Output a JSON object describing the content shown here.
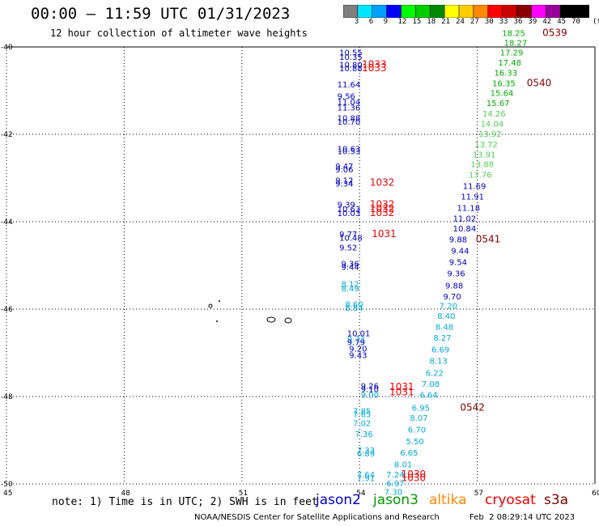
{
  "title": "00:00 – 11:59 UTC 01/31/2023",
  "subtitle": "12 hour collection of altimeter wave heights",
  "colorbar": {
    "unit": "(ft)",
    "labels": [
      "3",
      "6",
      "9",
      "12",
      "15",
      "18",
      "21",
      "24",
      "27",
      "30",
      "33",
      "36",
      "39",
      "42",
      "45",
      "70"
    ],
    "colors": [
      "#7f7f7f",
      "#00e5ff",
      "#00a0ff",
      "#0000ff",
      "#00ff00",
      "#00cc00",
      "#008800",
      "#ffff00",
      "#ffcc00",
      "#ff8800",
      "#ff0000",
      "#cc0000",
      "#880000",
      "#ff00ff",
      "#990099",
      "#000000",
      "#000000"
    ]
  },
  "note": "note: 1) Time is in UTC; 2) SWH is in feet",
  "satellites": [
    {
      "name": "jason2",
      "color": "#0000cc"
    },
    {
      "name": "jason3",
      "color": "#009900"
    },
    {
      "name": "altika",
      "color": "#ff8800"
    },
    {
      "name": "cryosat",
      "color": "#ee0000"
    },
    {
      "name": "s3a",
      "color": "#880000"
    }
  ],
  "credit": "NOAA/NESDIS Center for Satellite Applications and Research",
  "timestamp": "Feb  2 08:29:14 UTC 2023",
  "chart_data": {
    "type": "scatter",
    "title": "00:00 – 11:59 UTC 01/31/2023",
    "xlabel": "",
    "ylabel": "",
    "xlim": [
      45,
      60
    ],
    "ylim": [
      -50,
      -40
    ],
    "x_ticks": [
      "45",
      "48",
      "51",
      "54",
      "57",
      "60"
    ],
    "y_ticks": [
      "-40",
      "-42",
      "-44",
      "-46",
      "-48",
      "-50"
    ],
    "grid": true,
    "points": [
      {
        "lon": 53.75,
        "lat": -40.12,
        "text": "10.55",
        "color": "#0000cc"
      },
      {
        "lon": 53.75,
        "lat": -40.22,
        "text": "10.35",
        "color": "#0000cc"
      },
      {
        "lon": 53.75,
        "lat": -40.4,
        "text": "10.80",
        "color": "#0000cc"
      },
      {
        "lon": 53.75,
        "lat": -40.48,
        "text": "10.88",
        "color": "#0000cc"
      },
      {
        "lon": 54.35,
        "lat": -40.4,
        "text": "1033",
        "color": "#ee0000"
      },
      {
        "lon": 54.35,
        "lat": -40.48,
        "text": "1033",
        "color": "#ee0000"
      },
      {
        "lon": 53.7,
        "lat": -40.85,
        "text": "11.64",
        "color": "#0000cc"
      },
      {
        "lon": 53.7,
        "lat": -41.12,
        "text": "9.56",
        "color": "#0000cc"
      },
      {
        "lon": 53.7,
        "lat": -41.25,
        "text": "11.04",
        "color": "#0000cc"
      },
      {
        "lon": 53.7,
        "lat": -41.38,
        "text": "11.36",
        "color": "#0000cc"
      },
      {
        "lon": 53.7,
        "lat": -41.62,
        "text": "10.88",
        "color": "#0000cc"
      },
      {
        "lon": 53.7,
        "lat": -41.7,
        "text": "10.70",
        "color": "#0000cc"
      },
      {
        "lon": 53.7,
        "lat": -42.32,
        "text": "10.63",
        "color": "#0000cc"
      },
      {
        "lon": 53.7,
        "lat": -42.38,
        "text": "10.53",
        "color": "#0000cc"
      },
      {
        "lon": 53.65,
        "lat": -42.72,
        "text": "9.47",
        "color": "#0000cc"
      },
      {
        "lon": 53.65,
        "lat": -42.8,
        "text": "9.06",
        "color": "#0000cc"
      },
      {
        "lon": 53.65,
        "lat": -43.05,
        "text": "9.12",
        "color": "#0000cc"
      },
      {
        "lon": 53.65,
        "lat": -43.12,
        "text": "9.34",
        "color": "#0000cc"
      },
      {
        "lon": 54.55,
        "lat": -43.1,
        "text": "1032",
        "color": "#ee0000"
      },
      {
        "lon": 53.7,
        "lat": -43.6,
        "text": "9.39",
        "color": "#0000cc"
      },
      {
        "lon": 53.7,
        "lat": -43.7,
        "text": "10.63",
        "color": "#0000cc"
      },
      {
        "lon": 53.7,
        "lat": -43.8,
        "text": "10.03",
        "color": "#0000cc"
      },
      {
        "lon": 54.55,
        "lat": -43.6,
        "text": "1032",
        "color": "#ee0000"
      },
      {
        "lon": 54.55,
        "lat": -43.7,
        "text": "1032",
        "color": "#ee0000"
      },
      {
        "lon": 54.55,
        "lat": -43.8,
        "text": "1032",
        "color": "#ee0000"
      },
      {
        "lon": 53.75,
        "lat": -44.28,
        "text": "9.77",
        "color": "#0000cc"
      },
      {
        "lon": 53.75,
        "lat": -44.36,
        "text": "10.48",
        "color": "#0000cc"
      },
      {
        "lon": 54.6,
        "lat": -44.28,
        "text": "1031",
        "color": "#ee0000"
      },
      {
        "lon": 53.75,
        "lat": -44.58,
        "text": "9.52",
        "color": "#0000cc"
      },
      {
        "lon": 53.8,
        "lat": -44.95,
        "text": "9.36",
        "color": "#0000cc"
      },
      {
        "lon": 53.8,
        "lat": -45.03,
        "text": "9.44",
        "color": "#0000cc"
      },
      {
        "lon": 53.8,
        "lat": -45.42,
        "text": "8.12",
        "color": "#00aadd"
      },
      {
        "lon": 53.8,
        "lat": -45.52,
        "text": "8.49",
        "color": "#00aadd"
      },
      {
        "lon": 53.9,
        "lat": -45.88,
        "text": "8.60",
        "color": "#00aadd"
      },
      {
        "lon": 53.9,
        "lat": -45.96,
        "text": "8.84",
        "color": "#00aadd"
      },
      {
        "lon": 53.95,
        "lat": -46.55,
        "text": "10.01",
        "color": "#0000cc"
      },
      {
        "lon": 53.95,
        "lat": -46.68,
        "text": "9.73",
        "color": "#00aadd"
      },
      {
        "lon": 53.95,
        "lat": -46.75,
        "text": "9.79",
        "color": "#0000cc"
      },
      {
        "lon": 54.0,
        "lat": -46.9,
        "text": "9.20",
        "color": "#0000cc"
      },
      {
        "lon": 54.0,
        "lat": -47.05,
        "text": "9.43",
        "color": "#0000cc"
      },
      {
        "lon": 54.3,
        "lat": -47.75,
        "text": "9.26",
        "color": "#0000cc"
      },
      {
        "lon": 54.3,
        "lat": -47.82,
        "text": "9.10",
        "color": "#0000cc"
      },
      {
        "lon": 54.3,
        "lat": -47.95,
        "text": "9.00",
        "color": "#00aadd"
      },
      {
        "lon": 55.05,
        "lat": -47.78,
        "text": "1031",
        "color": "#ee0000"
      },
      {
        "lon": 55.05,
        "lat": -47.9,
        "text": "1031",
        "color": "#ee0000"
      },
      {
        "lon": 54.1,
        "lat": -48.32,
        "text": "7.85",
        "color": "#00aadd"
      },
      {
        "lon": 54.1,
        "lat": -48.4,
        "text": "7.65",
        "color": "#00aadd"
      },
      {
        "lon": 54.1,
        "lat": -48.6,
        "text": "7.02",
        "color": "#00aadd"
      },
      {
        "lon": 54.15,
        "lat": -48.85,
        "text": "7.36",
        "color": "#00aadd"
      },
      {
        "lon": 54.2,
        "lat": -49.22,
        "text": "7.33",
        "color": "#00aadd"
      },
      {
        "lon": 54.2,
        "lat": -49.3,
        "text": "6.89",
        "color": "#00aadd"
      },
      {
        "lon": 54.2,
        "lat": -49.78,
        "text": "7.64",
        "color": "#00aadd"
      },
      {
        "lon": 54.2,
        "lat": -49.86,
        "text": "7.91",
        "color": "#00aadd"
      },
      {
        "lon": 55.35,
        "lat": -49.78,
        "text": "1030",
        "color": "#ee0000"
      },
      {
        "lon": 55.35,
        "lat": -49.86,
        "text": "1030",
        "color": "#ee0000"
      },
      {
        "lon": 54.95,
        "lat": -49.78,
        "text": "7.24",
        "color": "#00aadd"
      },
      {
        "lon": 54.95,
        "lat": -49.98,
        "text": "6.97",
        "color": "#00aadd"
      },
      {
        "lon": 54.9,
        "lat": -50.18,
        "text": "7.30",
        "color": "#00aadd"
      },
      {
        "lon": 55.15,
        "lat": -49.55,
        "text": "8.01",
        "color": "#00aadd"
      },
      {
        "lon": 55.3,
        "lat": -49.28,
        "text": "6.65",
        "color": "#00aadd"
      },
      {
        "lon": 55.45,
        "lat": -49.02,
        "text": "5.50",
        "color": "#00aadd"
      },
      {
        "lon": 55.5,
        "lat": -48.75,
        "text": "6.70",
        "color": "#00aadd"
      },
      {
        "lon": 55.55,
        "lat": -48.48,
        "text": "8.07",
        "color": "#00aadd"
      },
      {
        "lon": 55.6,
        "lat": -48.25,
        "text": "6.95",
        "color": "#00aadd"
      },
      {
        "lon": 56.85,
        "lat": -48.25,
        "text": "0542",
        "color": "#880000"
      },
      {
        "lon": 55.8,
        "lat": -47.95,
        "text": "6.64",
        "color": "#00aadd"
      },
      {
        "lon": 55.85,
        "lat": -47.7,
        "text": "7.08",
        "color": "#00aadd"
      },
      {
        "lon": 55.95,
        "lat": -47.45,
        "text": "6.22",
        "color": "#00aadd"
      },
      {
        "lon": 56.05,
        "lat": -47.18,
        "text": "8.13",
        "color": "#00aadd"
      },
      {
        "lon": 56.1,
        "lat": -46.92,
        "text": "6.69",
        "color": "#00aadd"
      },
      {
        "lon": 56.15,
        "lat": -46.65,
        "text": "8.27",
        "color": "#00aadd"
      },
      {
        "lon": 56.2,
        "lat": -46.4,
        "text": "8.48",
        "color": "#00aadd"
      },
      {
        "lon": 56.25,
        "lat": -46.15,
        "text": "8.40",
        "color": "#00aadd"
      },
      {
        "lon": 56.3,
        "lat": -45.92,
        "text": "7.20",
        "color": "#00aadd"
      },
      {
        "lon": 56.4,
        "lat": -45.7,
        "text": "9.70",
        "color": "#0000cc"
      },
      {
        "lon": 56.45,
        "lat": -45.45,
        "text": "9.88",
        "color": "#0000cc"
      },
      {
        "lon": 56.5,
        "lat": -45.18,
        "text": "9.36",
        "color": "#0000cc"
      },
      {
        "lon": 56.55,
        "lat": -44.92,
        "text": "9.54",
        "color": "#0000cc"
      },
      {
        "lon": 56.6,
        "lat": -44.66,
        "text": "9.44",
        "color": "#0000cc"
      },
      {
        "lon": 56.55,
        "lat": -44.4,
        "text": "9.88",
        "color": "#0000cc"
      },
      {
        "lon": 57.25,
        "lat": -44.4,
        "text": "0541",
        "color": "#880000"
      },
      {
        "lon": 56.65,
        "lat": -44.15,
        "text": "10.84",
        "color": "#0000cc"
      },
      {
        "lon": 56.65,
        "lat": -43.92,
        "text": "11.02",
        "color": "#0000cc"
      },
      {
        "lon": 56.75,
        "lat": -43.68,
        "text": "11.18",
        "color": "#0000cc"
      },
      {
        "lon": 56.85,
        "lat": -43.42,
        "text": "11.91",
        "color": "#0000cc"
      },
      {
        "lon": 56.9,
        "lat": -43.18,
        "text": "11.69",
        "color": "#0000cc"
      },
      {
        "lon": 57.05,
        "lat": -42.92,
        "text": "13.76",
        "color": "#55cc55"
      },
      {
        "lon": 57.1,
        "lat": -42.68,
        "text": "13.88",
        "color": "#55cc55"
      },
      {
        "lon": 57.15,
        "lat": -42.45,
        "text": "13.91",
        "color": "#55cc55"
      },
      {
        "lon": 57.2,
        "lat": -42.22,
        "text": "13.72",
        "color": "#55cc55"
      },
      {
        "lon": 57.3,
        "lat": -41.98,
        "text": "13.92",
        "color": "#55cc55"
      },
      {
        "lon": 57.35,
        "lat": -41.75,
        "text": "14.04",
        "color": "#55cc55"
      },
      {
        "lon": 57.4,
        "lat": -41.52,
        "text": "14.26",
        "color": "#55cc55"
      },
      {
        "lon": 57.5,
        "lat": -41.28,
        "text": "15.67",
        "color": "#00aa00"
      },
      {
        "lon": 57.6,
        "lat": -41.05,
        "text": "15.64",
        "color": "#00aa00"
      },
      {
        "lon": 57.65,
        "lat": -40.82,
        "text": "16.35",
        "color": "#00aa00"
      },
      {
        "lon": 58.55,
        "lat": -40.82,
        "text": "0540",
        "color": "#880000"
      },
      {
        "lon": 57.7,
        "lat": -40.58,
        "text": "16.33",
        "color": "#00aa00"
      },
      {
        "lon": 57.8,
        "lat": -40.35,
        "text": "17.48",
        "color": "#00aa00"
      },
      {
        "lon": 57.85,
        "lat": -40.12,
        "text": "17.29",
        "color": "#00aa00"
      },
      {
        "lon": 57.95,
        "lat": -39.9,
        "text": "18.27",
        "color": "#00aa00"
      },
      {
        "lon": 57.9,
        "lat": -39.68,
        "text": "18.25",
        "color": "#00aa00"
      },
      {
        "lon": 58.95,
        "lat": -39.68,
        "text": "0539",
        "color": "#880000"
      }
    ]
  }
}
